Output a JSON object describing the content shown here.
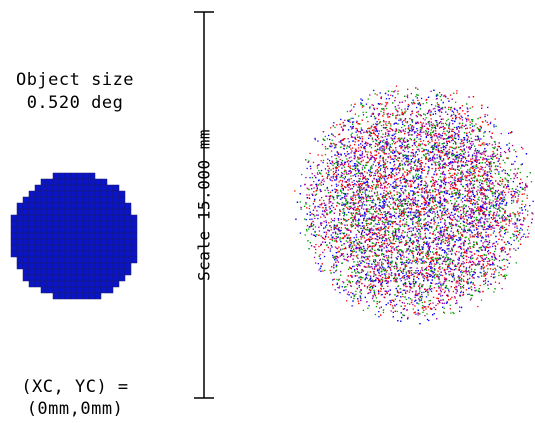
{
  "object_panel": {
    "size_label": "Object size",
    "size_value": "0.520 deg",
    "coord_label": "(XC, YC) =",
    "coord_value": "(0mm,0mm)"
  },
  "scale_bar": {
    "label": "Scale 15.000 mm"
  },
  "colors": {
    "object_fill": "#0a14c8",
    "object_grid": "#1a1a6a",
    "spot_colors": [
      "#ff0000",
      "#00a000",
      "#0000ff",
      "#a000a0"
    ]
  }
}
